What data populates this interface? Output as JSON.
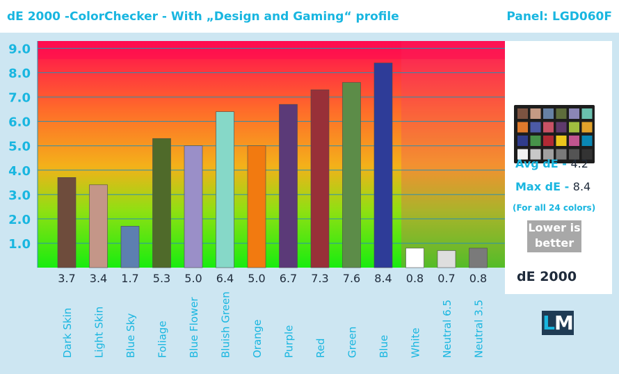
{
  "title": "dE 2000 -ColorChecker - With „Design and Gaming“ profile",
  "panel": "Panel: LGD060F",
  "stats": {
    "avg_label": "Avg dE - ",
    "avg_value": "4.2",
    "max_label": "Max dE - ",
    "max_value": "8.4",
    "note": "(For all 24 colors)",
    "lower_line1": "Lower is",
    "lower_line2": "better"
  },
  "metric_label": "dE 2000",
  "logo": {
    "l": "L",
    "m": "M"
  },
  "checker_swatches": [
    "#7c5341",
    "#c59a84",
    "#6781a4",
    "#5e6d3c",
    "#8b86b6",
    "#6ac0ae",
    "#df7a2c",
    "#4c5aa6",
    "#c75265",
    "#5f3a6c",
    "#a0bd3f",
    "#e2a22b",
    "#303c8c",
    "#47934a",
    "#b02a34",
    "#ecc61c",
    "#c0558f",
    "#0a87b4",
    "#f2f2f2",
    "#c8c8c8",
    "#a0a0a0",
    "#7a7a7a",
    "#545454",
    "#333333"
  ],
  "chart_data": {
    "type": "bar",
    "categories": [
      "Dark Skin",
      "Light Skin",
      "Blue Sky",
      "Foliage",
      "Blue Flower",
      "Bluish Green",
      "Orange",
      "Purple",
      "Red",
      "Green",
      "Blue",
      "White",
      "Neutral 6.5",
      "Neutral 3.5"
    ],
    "values": [
      3.7,
      3.4,
      1.7,
      5.3,
      5.0,
      6.4,
      5.0,
      6.7,
      7.3,
      7.6,
      8.4,
      0.8,
      0.7,
      0.8
    ],
    "value_labels": [
      "3.7",
      "3.4",
      "1.7",
      "5.3",
      "5.0",
      "6.4",
      "5.0",
      "6.7",
      "7.3",
      "7.6",
      "8.4",
      "0.8",
      "0.7",
      "0.8"
    ],
    "bar_colors": [
      "#6e4c3c",
      "#c49688",
      "#5d7fb0",
      "#4f6a2a",
      "#9a8fc8",
      "#86d8c8",
      "#f27a10",
      "#5b3a78",
      "#983038",
      "#5c8c48",
      "#2e3c98",
      "#ffffff",
      "#dedede",
      "#7a7a7a"
    ],
    "y_ticks": [
      "1.0",
      "2.0",
      "3.0",
      "4.0",
      "5.0",
      "6.0",
      "7.0",
      "8.0",
      "9.0"
    ],
    "ylim": [
      0,
      9.3
    ],
    "grid": true,
    "background": "gradient green (low) to red (high); neutral region shaded red",
    "colors": {
      "accent": "#19b6e0",
      "label": "#19b6e0",
      "value_text": "#1e2a3a"
    }
  }
}
